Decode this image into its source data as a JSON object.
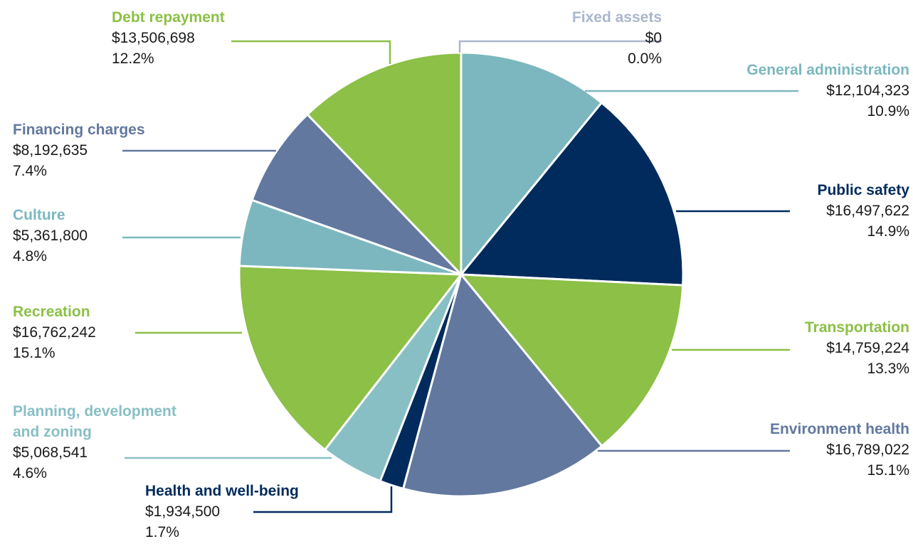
{
  "chart_data": {
    "type": "pie",
    "title": "",
    "start": "top",
    "direction": "clockwise",
    "colors": {
      "teal": "#7cb7bf",
      "navy": "#002b5c",
      "green": "#8cc046",
      "slate": "#62789e",
      "fixed_assets_label": "#aab6cc"
    },
    "slices": [
      {
        "label": "Fixed assets",
        "value": 0,
        "amount": "$0",
        "percent": "0.0%",
        "color": "#aab6cc",
        "label_side": "right"
      },
      {
        "label": "General administration",
        "value": 12104323,
        "amount": "$12,104,323",
        "percent": "10.9%",
        "color": "#7cb7bf",
        "label_side": "right"
      },
      {
        "label": "Public safety",
        "value": 16497622,
        "amount": "$16,497,622",
        "percent": "14.9%",
        "color": "#002b5c",
        "label_side": "right"
      },
      {
        "label": "Transportation",
        "value": 14759224,
        "amount": "$14,759,224",
        "percent": "13.3%",
        "color": "#8cc046",
        "label_side": "right"
      },
      {
        "label": "Environment health",
        "value": 16789022,
        "amount": "$16,789,022",
        "percent": "15.1%",
        "color": "#62789e",
        "label_side": "right"
      },
      {
        "label": "Health and well-being",
        "value": 1934500,
        "amount": "$1,934,500",
        "percent": "1.7%",
        "color": "#002b5c",
        "label_side": "left"
      },
      {
        "label": "Planning, development and zoning",
        "label_lines": [
          "Planning, development",
          "and zoning"
        ],
        "value": 5068541,
        "amount": "$5,068,541",
        "percent": "4.6%",
        "color": "#88bfc4",
        "label_side": "left"
      },
      {
        "label": "Recreation",
        "value": 16762242,
        "amount": "$16,762,242",
        "percent": "15.1%",
        "color": "#8cc046",
        "label_side": "left"
      },
      {
        "label": "Culture",
        "value": 5361800,
        "amount": "$5,361,800",
        "percent": "4.8%",
        "color": "#7cb7bf",
        "label_side": "left"
      },
      {
        "label": "Financing charges",
        "value": 8192635,
        "amount": "$8,192,635",
        "percent": "7.4%",
        "color": "#62789e",
        "label_side": "left"
      },
      {
        "label": "Debt repayment",
        "value": 13506698,
        "amount": "$13,506,698",
        "percent": "12.2%",
        "color": "#8cc046",
        "label_side": "left"
      }
    ]
  }
}
